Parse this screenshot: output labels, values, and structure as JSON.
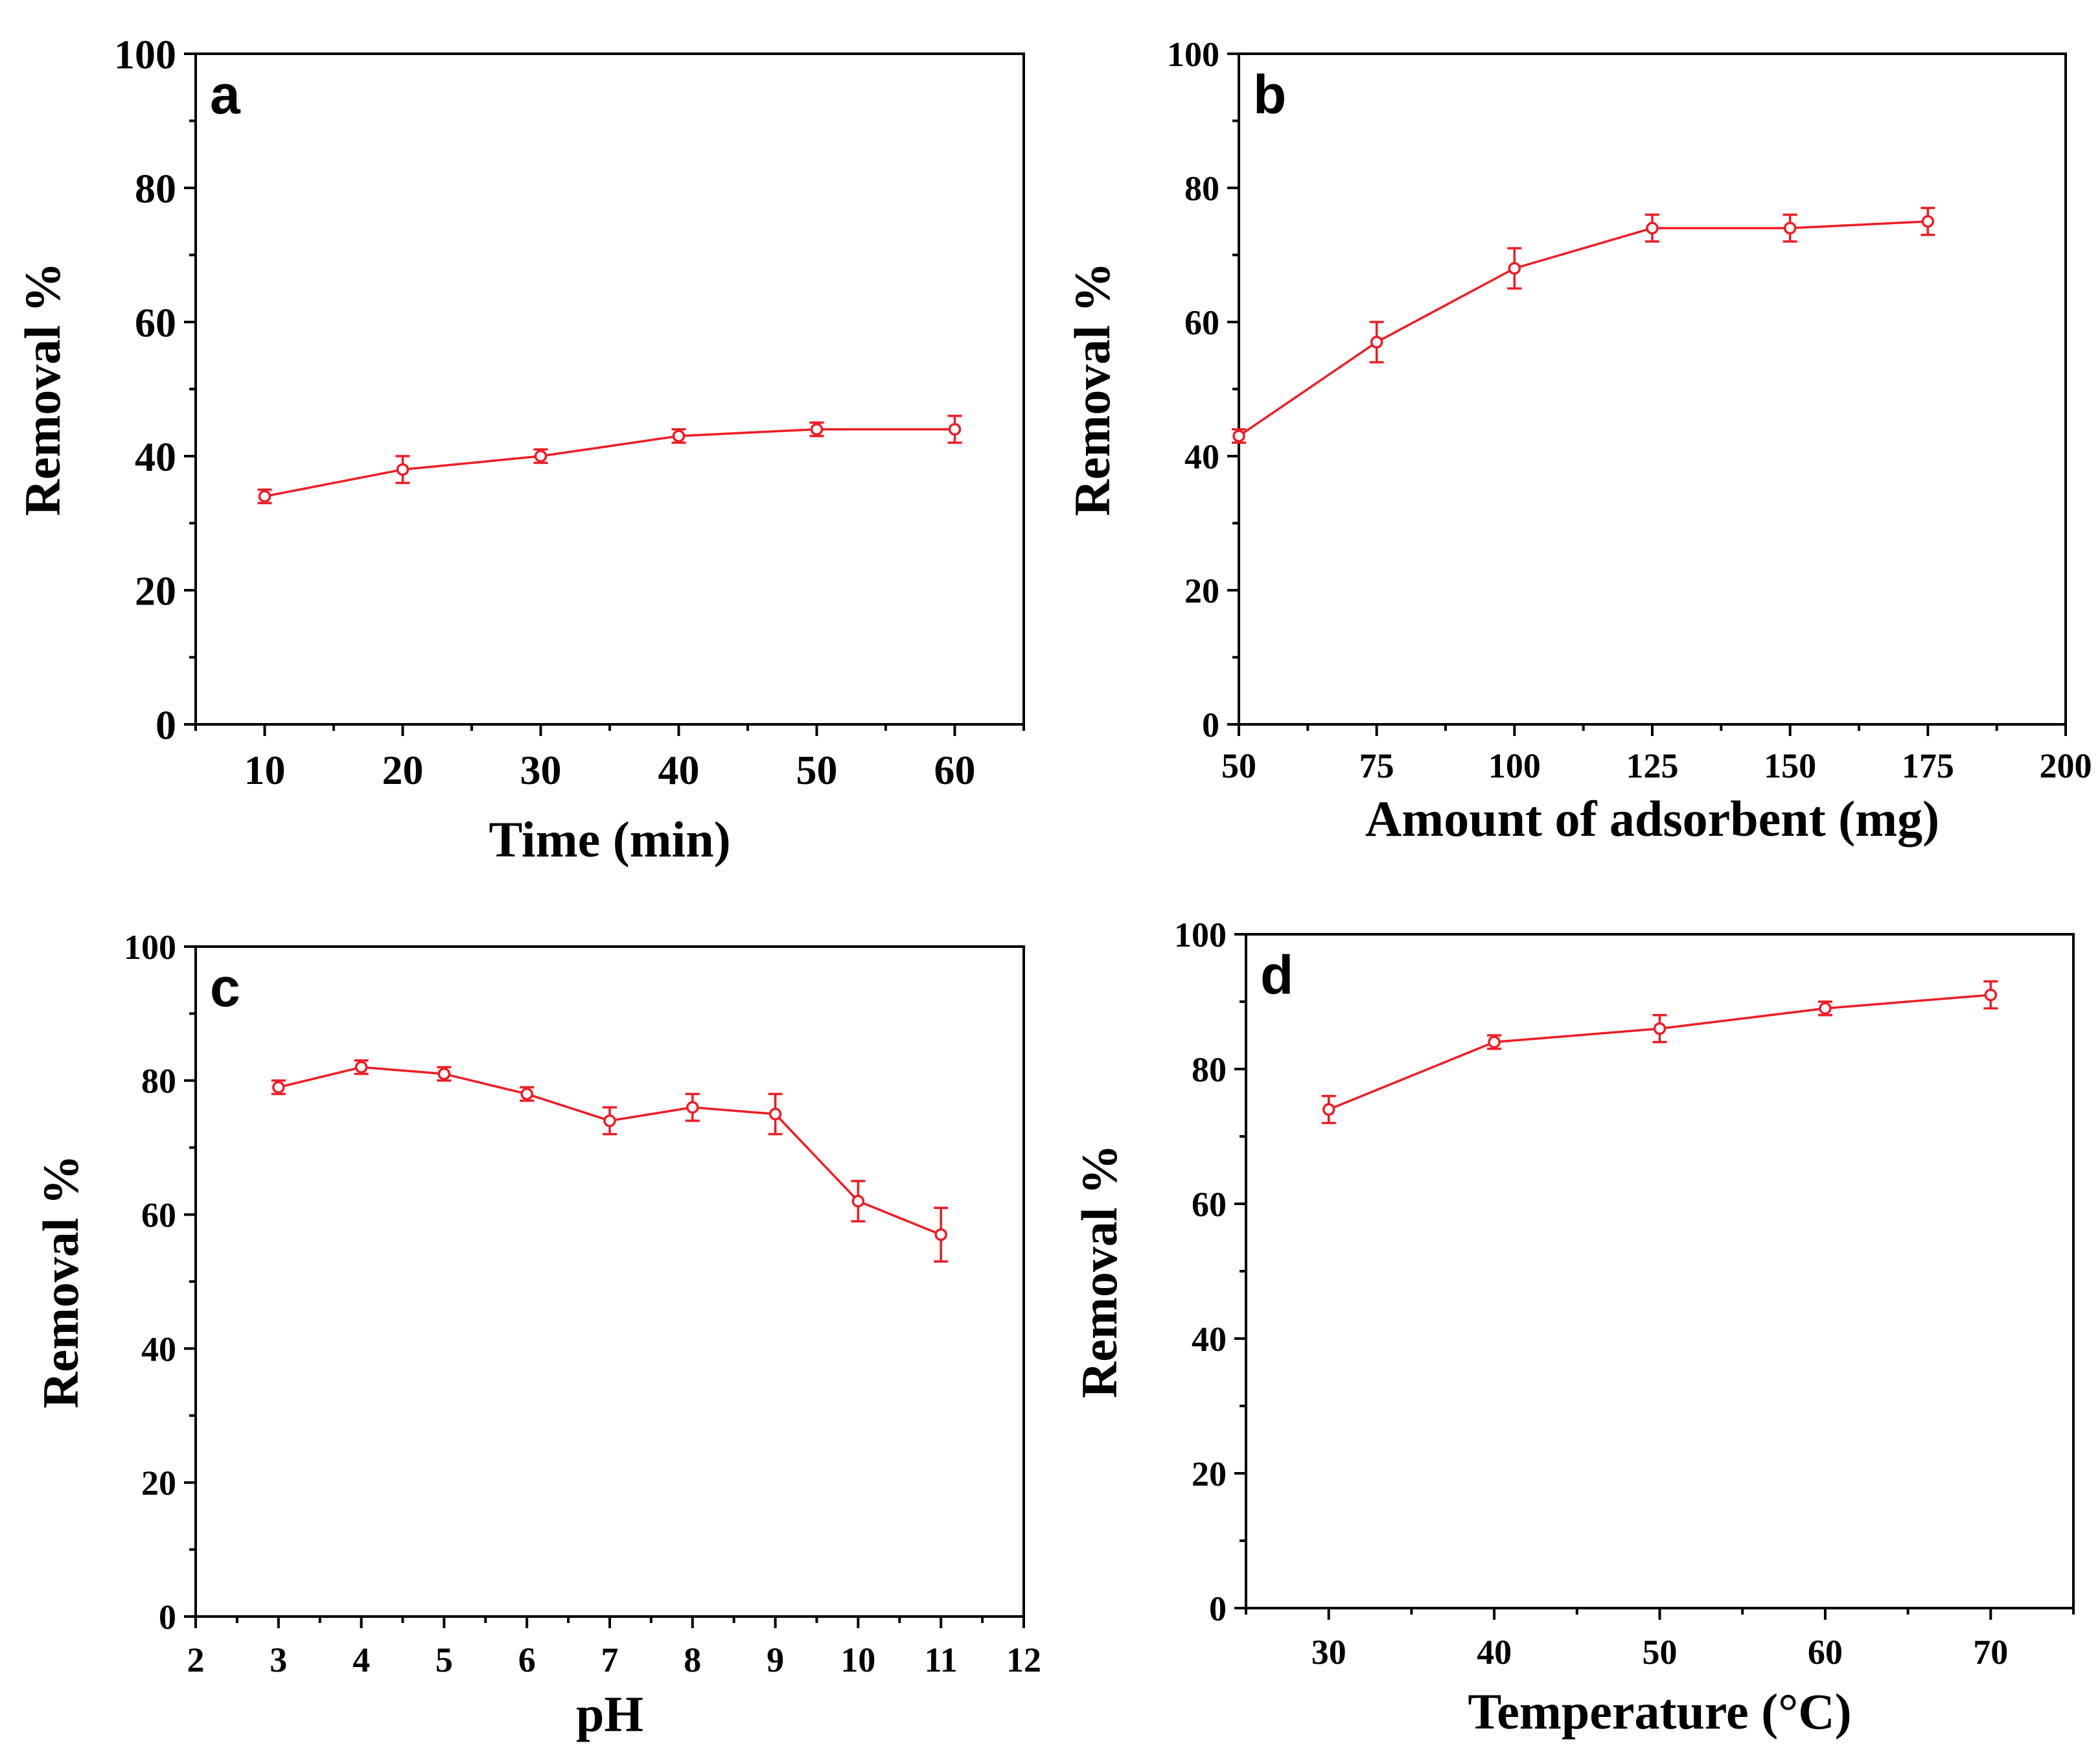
{
  "colors": {
    "series": "#ee1c25",
    "axes": "#000000",
    "background": "#ffffff"
  },
  "chart_data": [
    {
      "type": "line",
      "panel_label": "a",
      "title": "",
      "xlabel": "Time (min)",
      "ylabel": "Removal %",
      "xlim": [
        5,
        65
      ],
      "ylim": [
        0,
        100
      ],
      "xticks": [
        10,
        20,
        30,
        40,
        50,
        60
      ],
      "yticks": [
        0,
        20,
        40,
        60,
        80,
        100
      ],
      "grid": false,
      "series": [
        {
          "x": [
            10,
            20,
            30,
            40,
            50,
            60
          ],
          "values": [
            34,
            38,
            40,
            43,
            44,
            44
          ],
          "errors": [
            1,
            2,
            1,
            1,
            1,
            2
          ]
        }
      ]
    },
    {
      "type": "line",
      "panel_label": "b",
      "title": "",
      "xlabel": "Amount of adsorbent (mg)",
      "ylabel": "Removal %",
      "xlim": [
        50,
        200
      ],
      "ylim": [
        0,
        100
      ],
      "xticks": [
        50,
        75,
        100,
        125,
        150,
        175,
        200
      ],
      "yticks": [
        0,
        20,
        40,
        60,
        80,
        100
      ],
      "grid": false,
      "series": [
        {
          "x": [
            50,
            75,
            100,
            125,
            150,
            175
          ],
          "values": [
            43,
            57,
            68,
            74,
            74,
            75
          ],
          "errors": [
            1,
            3,
            3,
            2,
            2,
            2
          ]
        }
      ]
    },
    {
      "type": "line",
      "panel_label": "c",
      "title": "",
      "xlabel": "pH",
      "ylabel": "Removal %",
      "xlim": [
        2,
        12
      ],
      "ylim": [
        0,
        100
      ],
      "xticks": [
        2,
        3,
        4,
        5,
        6,
        7,
        8,
        9,
        10,
        11,
        12
      ],
      "yticks": [
        0,
        20,
        40,
        60,
        80,
        100
      ],
      "grid": false,
      "series": [
        {
          "x": [
            3,
            4,
            5,
            6,
            7,
            8,
            9,
            10,
            11
          ],
          "values": [
            79,
            82,
            81,
            78,
            74,
            76,
            75,
            62,
            57
          ],
          "errors": [
            1,
            1,
            1,
            1,
            2,
            2,
            3,
            3,
            4
          ]
        }
      ]
    },
    {
      "type": "line",
      "panel_label": "d",
      "title": "",
      "xlabel": "Temperature (°C)",
      "ylabel": "Removal %",
      "xlim": [
        25,
        75
      ],
      "ylim": [
        0,
        100
      ],
      "xticks": [
        30,
        40,
        50,
        60,
        70
      ],
      "yticks": [
        0,
        20,
        40,
        60,
        80,
        100
      ],
      "grid": false,
      "series": [
        {
          "x": [
            30,
            40,
            50,
            60,
            70
          ],
          "values": [
            74,
            84,
            86,
            89,
            91
          ],
          "errors": [
            2,
            1,
            2,
            1,
            2
          ]
        }
      ]
    }
  ]
}
